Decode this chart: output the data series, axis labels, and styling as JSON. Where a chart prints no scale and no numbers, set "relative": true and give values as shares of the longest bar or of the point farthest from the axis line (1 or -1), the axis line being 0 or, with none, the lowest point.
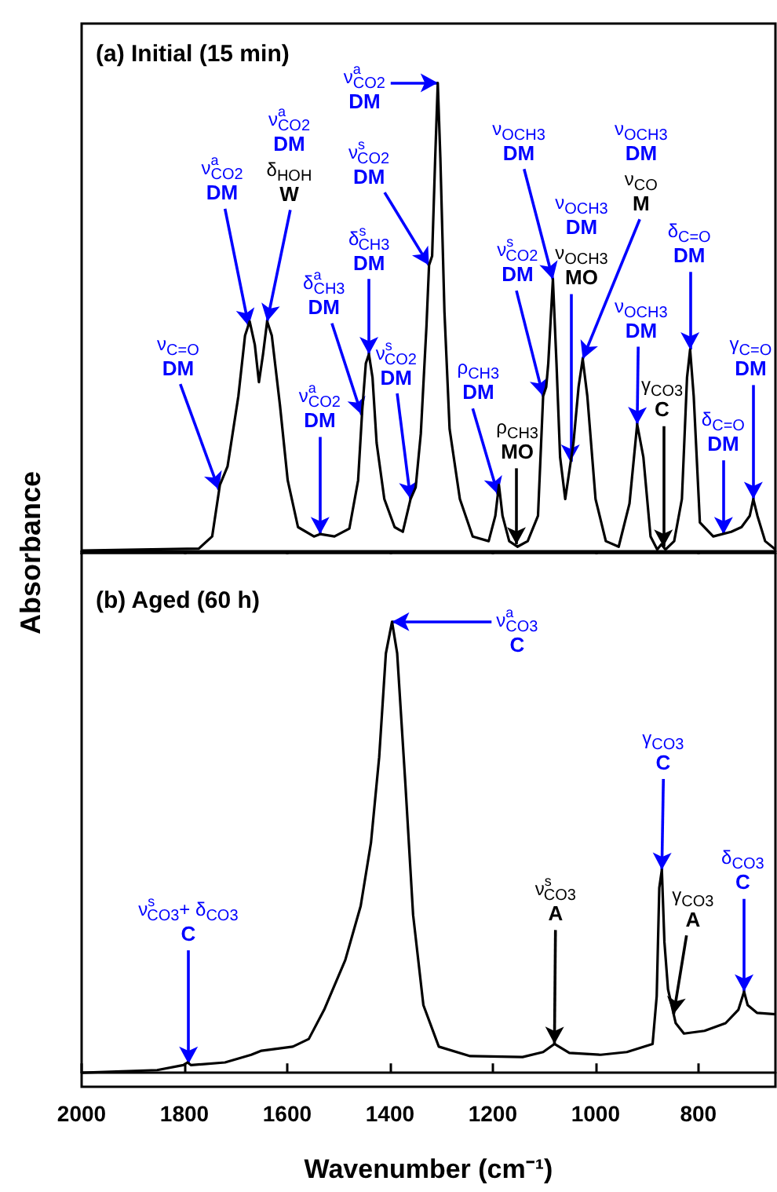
{
  "chart_data": [
    {
      "type": "line",
      "title": "(a) Initial (15 min)",
      "ylabel": "Absorbance",
      "relative": true,
      "xlim": [
        2000,
        650
      ],
      "xticks": [
        2000,
        1800,
        1600,
        1400,
        1200,
        1000,
        800
      ],
      "tick_labels": false,
      "series": [
        {
          "color": "#000000",
          "x": [
            2000,
            1772,
            1746,
            1731,
            1716,
            1695,
            1682,
            1673,
            1663,
            1655,
            1647,
            1639,
            1630,
            1614,
            1599,
            1579,
            1548,
            1536,
            1508,
            1479,
            1462,
            1454,
            1447,
            1441,
            1434,
            1426,
            1411,
            1391,
            1375,
            1360,
            1350,
            1340,
            1329,
            1324,
            1318,
            1312,
            1307,
            1302,
            1294,
            1284,
            1264,
            1239,
            1208,
            1195,
            1188,
            1181,
            1168,
            1152,
            1132,
            1112,
            1102,
            1096,
            1092,
            1083,
            1076,
            1069,
            1059,
            1051,
            1043,
            1033,
            1025,
            1016,
            1000,
            980,
            955,
            934,
            919,
            907,
            893,
            880,
            872,
            864,
            847,
            832,
            822,
            816,
            809,
            797,
            771,
            736,
            716,
            700,
            693,
            685,
            670,
            650
          ],
          "values": [
            0,
            0.004,
            0.03,
            0.14,
            0.18,
            0.33,
            0.46,
            0.49,
            0.44,
            0.36,
            0.42,
            0.49,
            0.46,
            0.31,
            0.15,
            0.05,
            0.03,
            0.035,
            0.03,
            0.047,
            0.15,
            0.3,
            0.4,
            0.42,
            0.37,
            0.23,
            0.11,
            0.05,
            0.04,
            0.11,
            0.135,
            0.25,
            0.48,
            0.61,
            0.63,
            0.84,
            1.0,
            0.84,
            0.51,
            0.26,
            0.11,
            0.03,
            0.02,
            0.074,
            0.14,
            0.074,
            0.02,
            0.008,
            0.02,
            0.074,
            0.33,
            0.35,
            0.4,
            0.58,
            0.4,
            0.2,
            0.11,
            0.17,
            0.23,
            0.35,
            0.41,
            0.33,
            0.11,
            0.02,
            0.008,
            0.1,
            0.27,
            0.2,
            0.03,
            0.002,
            0.013,
            0.002,
            0.02,
            0.11,
            0.37,
            0.43,
            0.33,
            0.06,
            0.03,
            0.04,
            0.05,
            0.074,
            0.11,
            0.074,
            0.02,
            0.002
          ]
        }
      ],
      "annotations": [
        {
          "text": "ν$_{C=O}$\nDM",
          "x": 1733,
          "y": 0.13
        },
        {
          "text": "ν$^{a}$$_{CO2}$\nDM",
          "x": 1675,
          "y": 0.48
        },
        {
          "text": "ν$^{a}$$_{CO2}$\nDM\nδ$_{HOH}$\nW",
          "x": 1639,
          "y": 0.49
        },
        {
          "text": "ν$^{a}$$_{CO2}$\nDM",
          "x": 1307,
          "y": 1.0
        },
        {
          "text": "ν$^{s}$$_{CO2}$\nDM",
          "x": 1324,
          "y": 0.61
        },
        {
          "text": "δ$^{s}$$_{CH3}$\nDM",
          "x": 1441,
          "y": 0.42
        },
        {
          "text": "δ$^{a}$$_{CH3}$\nDM",
          "x": 1455,
          "y": 0.29
        },
        {
          "text": "ν$^{a}$$_{CO2}$\nDM",
          "x": 1536,
          "y": 0.035
        },
        {
          "text": "ν$^{s}$$_{CO2}$\nDM",
          "x": 1360,
          "y": 0.11
        },
        {
          "text": "ρ$_{CH3}$\nDM",
          "x": 1190,
          "y": 0.12
        },
        {
          "text": "ρ$_{CH3}$\nMO",
          "x": 1154,
          "y": 0.013
        },
        {
          "text": "ν$^{s}$$_{CO2}$\nDM",
          "x": 1102,
          "y": 0.33
        },
        {
          "text": "ν$_{OCH3}$\nDM",
          "x": 1083,
          "y": 0.58
        },
        {
          "text": "ν$_{OCH3}$\nDM\nν$_{OCH3}$\nMO",
          "x": 1049,
          "y": 0.19
        },
        {
          "text": "ν$_{OCH3}$\nDM\nν$_{CO}$\nM",
          "x": 1025,
          "y": 0.41
        },
        {
          "text": "ν$_{OCH3}$\nDM",
          "x": 919,
          "y": 0.27
        },
        {
          "text": "γ$_{CO3}$\nC",
          "x": 868,
          "y": 0.008
        },
        {
          "text": "δ$_{C=O}$\nDM",
          "x": 816,
          "y": 0.43
        },
        {
          "text": "δ$_{C=O}$\nDM",
          "x": 751,
          "y": 0.035
        },
        {
          "text": "γ$_{C=O}$\nDM",
          "x": 693,
          "y": 0.11
        }
      ]
    },
    {
      "type": "line",
      "title": "(b) Aged (60 h)",
      "xlabel": "Wavenumber (cm⁻¹)",
      "relative": true,
      "xlim": [
        2000,
        650
      ],
      "xticks": [
        2000,
        1800,
        1600,
        1400,
        1200,
        1000,
        800
      ],
      "tick_labels": "x",
      "series": [
        {
          "color": "#000000",
          "x": [
            2000,
            1853,
            1802,
            1794,
            1787,
            1721,
            1670,
            1650,
            1589,
            1558,
            1528,
            1487,
            1457,
            1437,
            1421,
            1408,
            1396,
            1386,
            1370,
            1355,
            1335,
            1305,
            1244,
            1142,
            1102,
            1080,
            1051,
            990,
            939,
            889,
            881,
            876,
            871,
            866,
            859,
            844,
            828,
            788,
            747,
            722,
            711,
            704,
            686,
            650
          ],
          "values": [
            0,
            0.006,
            0.017,
            0.023,
            0.017,
            0.023,
            0.04,
            0.049,
            0.058,
            0.075,
            0.14,
            0.25,
            0.37,
            0.51,
            0.7,
            0.93,
            1.0,
            0.93,
            0.64,
            0.35,
            0.15,
            0.058,
            0.037,
            0.035,
            0.046,
            0.064,
            0.044,
            0.04,
            0.046,
            0.064,
            0.17,
            0.41,
            0.45,
            0.29,
            0.185,
            0.11,
            0.087,
            0.093,
            0.11,
            0.14,
            0.18,
            0.15,
            0.133,
            0.13
          ]
        }
      ],
      "annotations": [
        {
          "text": "ν$^{a}$$_{CO3}$\nC",
          "x": 1396,
          "y": 1.0
        },
        {
          "text": "ν$^{s}$$_{CO3}$+ δ$_{CO3}$\nC",
          "x": 1792,
          "y": 0.02
        },
        {
          "text": "ν$^{s}$$_{CO3}$\nA",
          "x": 1080,
          "y": 0.064
        },
        {
          "text": "γ$_{CO3}$\nC",
          "x": 871,
          "y": 0.45
        },
        {
          "text": "γ$_{CO3}$\nA",
          "x": 848,
          "y": 0.13
        },
        {
          "text": "δ$_{CO3}$\nC",
          "x": 711,
          "y": 0.18
        }
      ]
    }
  ]
}
